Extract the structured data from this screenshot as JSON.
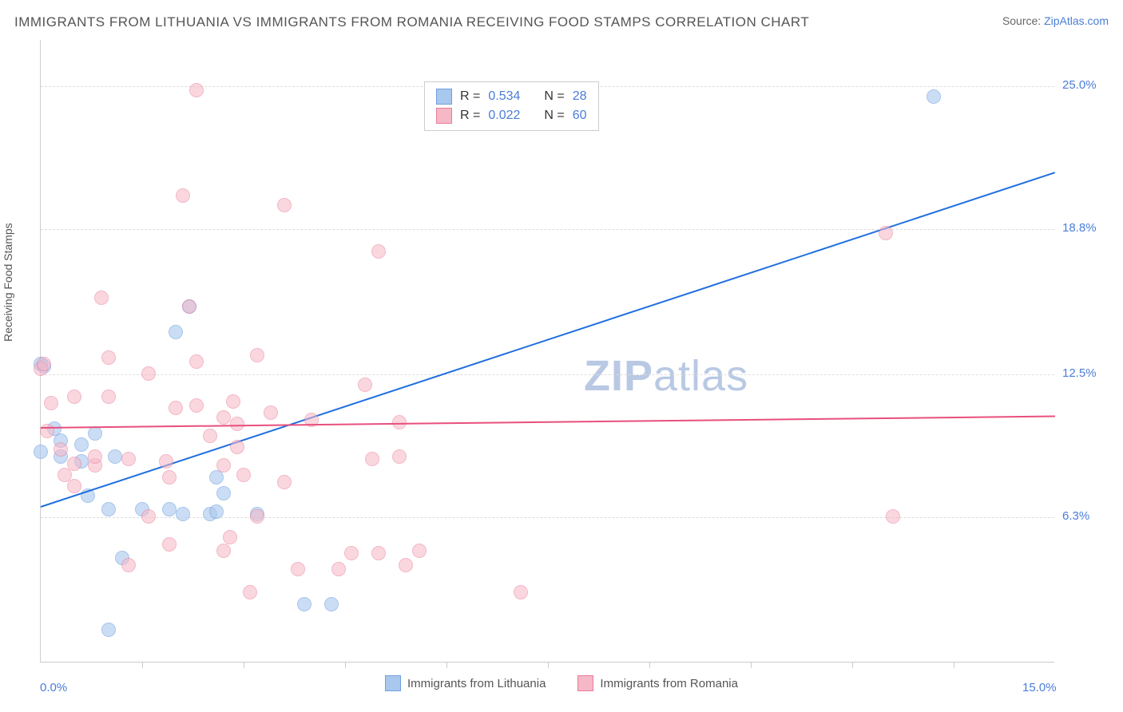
{
  "title": "IMMIGRANTS FROM LITHUANIA VS IMMIGRANTS FROM ROMANIA RECEIVING FOOD STAMPS CORRELATION CHART",
  "source_prefix": "Source: ",
  "source_link": "ZipAtlas.com",
  "y_axis_label": "Receiving Food Stamps",
  "watermark_bold": "ZIP",
  "watermark_light": "atlas",
  "chart": {
    "type": "scatter",
    "background_color": "#ffffff",
    "grid_color": "#dddddd",
    "axis_color": "#cccccc",
    "text_color": "#555555",
    "link_color": "#4a7dd8",
    "title_fontsize": 17,
    "label_fontsize": 14,
    "tick_fontsize": 15,
    "x_min": 0.0,
    "x_max": 15.0,
    "y_min": 0.0,
    "y_max": 27.0,
    "y_ticks": [
      {
        "v": 6.3,
        "label": "6.3%"
      },
      {
        "v": 12.5,
        "label": "12.5%"
      },
      {
        "v": 18.8,
        "label": "18.8%"
      },
      {
        "v": 25.0,
        "label": "25.0%"
      }
    ],
    "x_ticks_minor": [
      1.5,
      3.0,
      4.5,
      6.0,
      7.5,
      9.0,
      10.5,
      12.0,
      13.5
    ],
    "x_labels": [
      {
        "v": 0.0,
        "label": "0.0%"
      },
      {
        "v": 15.0,
        "label": "15.0%"
      }
    ],
    "series": [
      {
        "name": "Immigrants from Lithuania",
        "legend_label": "Immigrants from Lithuania",
        "fill_color": "#a9c8ee",
        "stroke_color": "#6f9fe0",
        "marker_opacity": 0.6,
        "marker_radius": 9,
        "line_color": "#1f6fe0",
        "line_width": 2,
        "R": "0.534",
        "N": "28",
        "reg_line": {
          "x1": 0.0,
          "y1": 6.8,
          "x2": 15.0,
          "y2": 21.3
        },
        "points": [
          [
            0.0,
            9.1
          ],
          [
            0.0,
            12.9
          ],
          [
            0.05,
            12.8
          ],
          [
            0.2,
            10.1
          ],
          [
            0.3,
            8.9
          ],
          [
            0.3,
            9.6
          ],
          [
            0.6,
            9.4
          ],
          [
            0.6,
            8.7
          ],
          [
            1.0,
            1.4
          ],
          [
            0.8,
            9.9
          ],
          [
            0.7,
            7.2
          ],
          [
            1.1,
            8.9
          ],
          [
            1.2,
            4.5
          ],
          [
            1.0,
            6.6
          ],
          [
            1.5,
            6.6
          ],
          [
            1.9,
            6.6
          ],
          [
            2.0,
            14.3
          ],
          [
            2.1,
            6.4
          ],
          [
            2.2,
            15.4
          ],
          [
            2.5,
            6.4
          ],
          [
            2.6,
            8.0
          ],
          [
            2.7,
            7.3
          ],
          [
            2.6,
            6.5
          ],
          [
            3.2,
            6.4
          ],
          [
            3.9,
            2.5
          ],
          [
            4.3,
            2.5
          ],
          [
            13.2,
            24.5
          ]
        ]
      },
      {
        "name": "Immigrants from Romania",
        "legend_label": "Immigrants from Romania",
        "fill_color": "#f6b8c6",
        "stroke_color": "#ea7c9b",
        "marker_opacity": 0.55,
        "marker_radius": 9,
        "line_color": "#e84f7d",
        "line_width": 2,
        "R": "0.022",
        "N": "60",
        "reg_line": {
          "x1": 0.0,
          "y1": 10.2,
          "x2": 15.0,
          "y2": 10.7
        },
        "points": [
          [
            0.0,
            12.7
          ],
          [
            0.05,
            12.9
          ],
          [
            0.1,
            10.0
          ],
          [
            0.15,
            11.2
          ],
          [
            0.3,
            9.2
          ],
          [
            0.35,
            8.1
          ],
          [
            0.5,
            8.6
          ],
          [
            0.5,
            7.6
          ],
          [
            0.5,
            11.5
          ],
          [
            0.8,
            8.5
          ],
          [
            0.8,
            8.9
          ],
          [
            0.9,
            15.8
          ],
          [
            1.0,
            13.2
          ],
          [
            1.0,
            11.5
          ],
          [
            1.3,
            4.2
          ],
          [
            1.3,
            8.8
          ],
          [
            1.6,
            12.5
          ],
          [
            1.6,
            6.3
          ],
          [
            1.85,
            8.7
          ],
          [
            1.9,
            8.0
          ],
          [
            1.9,
            5.1
          ],
          [
            2.0,
            11.0
          ],
          [
            2.1,
            20.2
          ],
          [
            2.2,
            15.4
          ],
          [
            2.3,
            11.1
          ],
          [
            2.3,
            13.0
          ],
          [
            2.3,
            24.8
          ],
          [
            2.5,
            9.8
          ],
          [
            2.7,
            8.5
          ],
          [
            2.7,
            10.6
          ],
          [
            2.7,
            4.8
          ],
          [
            2.8,
            5.4
          ],
          [
            2.85,
            11.3
          ],
          [
            2.9,
            9.3
          ],
          [
            2.9,
            10.3
          ],
          [
            3.0,
            8.1
          ],
          [
            3.1,
            3.0
          ],
          [
            3.2,
            13.3
          ],
          [
            3.2,
            6.3
          ],
          [
            3.4,
            10.8
          ],
          [
            3.6,
            19.8
          ],
          [
            3.6,
            7.8
          ],
          [
            3.8,
            4.0
          ],
          [
            4.0,
            10.5
          ],
          [
            4.4,
            4.0
          ],
          [
            4.6,
            4.7
          ],
          [
            4.8,
            12.0
          ],
          [
            4.9,
            8.8
          ],
          [
            5.0,
            17.8
          ],
          [
            5.0,
            4.7
          ],
          [
            5.3,
            10.4
          ],
          [
            5.3,
            8.9
          ],
          [
            5.4,
            4.2
          ],
          [
            5.6,
            4.8
          ],
          [
            7.1,
            3.0
          ],
          [
            12.5,
            18.6
          ],
          [
            12.6,
            6.3
          ]
        ]
      }
    ]
  },
  "legend_R_label": "R =",
  "legend_N_label": "N ="
}
